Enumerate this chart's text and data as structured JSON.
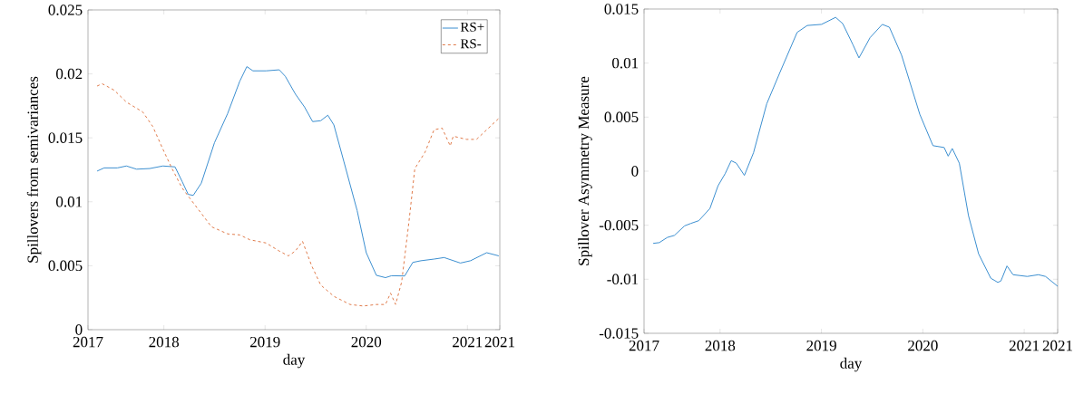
{
  "chart_data": [
    {
      "type": "line",
      "xlabel": "day",
      "ylabel": "Spillovers from semivariances",
      "xlim": [
        2017.25,
        2021.32
      ],
      "ylim": [
        0,
        0.025
      ],
      "xticks": [
        {
          "value": 2017.25,
          "label": "2017"
        },
        2018,
        2019,
        2020,
        2021,
        {
          "value": 2021.32,
          "label": "2021"
        }
      ],
      "yticks": [
        0,
        0.005,
        0.01,
        0.015,
        0.02,
        0.025
      ],
      "legend": "top right",
      "series": [
        {
          "name": "RS+",
          "color": "#3b8fd0",
          "line_style": "solid",
          "x": [
            2017.34,
            2017.41,
            2017.54,
            2017.63,
            2017.73,
            2017.86,
            2017.99,
            2018.11,
            2018.18,
            2018.24,
            2018.29,
            2018.37,
            2018.5,
            2018.63,
            2018.75,
            2018.82,
            2018.88,
            2019.01,
            2019.14,
            2019.2,
            2019.3,
            2019.39,
            2019.47,
            2019.55,
            2019.62,
            2019.68,
            2019.78,
            2019.91,
            2020.0,
            2020.1,
            2020.19,
            2020.25,
            2020.38,
            2020.46,
            2020.54,
            2020.67,
            2020.77,
            2020.93,
            2021.03,
            2021.19,
            2021.31
          ],
          "values": [
            0.0124,
            0.01265,
            0.01265,
            0.0128,
            0.01255,
            0.0126,
            0.0128,
            0.01273,
            0.01159,
            0.01058,
            0.0105,
            0.01146,
            0.01462,
            0.0169,
            0.01943,
            0.02057,
            0.02024,
            0.02024,
            0.02032,
            0.01981,
            0.01842,
            0.01741,
            0.01627,
            0.01634,
            0.01677,
            0.01601,
            0.01311,
            0.00931,
            0.00602,
            0.00425,
            0.00407,
            0.00422,
            0.0042,
            0.00526,
            0.00539,
            0.00552,
            0.00564,
            0.00521,
            0.00539,
            0.00602,
            0.00577
          ]
        },
        {
          "name": "RS-",
          "color": "#e07a4a",
          "line_style": "dashed",
          "x": [
            2017.34,
            2017.39,
            2017.51,
            2017.63,
            2017.79,
            2017.89,
            2017.99,
            2018.08,
            2018.18,
            2018.3,
            2018.47,
            2018.63,
            2018.75,
            2018.85,
            2019.01,
            2019.14,
            2019.23,
            2019.3,
            2019.37,
            2019.46,
            2019.55,
            2019.68,
            2019.84,
            2019.97,
            2020.1,
            2020.19,
            2020.24,
            2020.29,
            2020.35,
            2020.42,
            2020.48,
            2020.58,
            2020.67,
            2020.75,
            2020.83,
            2020.86,
            2020.99,
            2021.09,
            2021.19,
            2021.31
          ],
          "values": [
            0.01905,
            0.01923,
            0.01872,
            0.01779,
            0.01703,
            0.01589,
            0.01412,
            0.0126,
            0.01108,
            0.00982,
            0.00805,
            0.00749,
            0.00741,
            0.00703,
            0.00678,
            0.00615,
            0.00577,
            0.00615,
            0.00691,
            0.00501,
            0.00349,
            0.00261,
            0.00197,
            0.00185,
            0.00197,
            0.00197,
            0.00286,
            0.00197,
            0.00374,
            0.0083,
            0.0126,
            0.01386,
            0.01563,
            0.01576,
            0.01437,
            0.01513,
            0.01488,
            0.01488,
            0.01563,
            0.01652
          ]
        }
      ]
    },
    {
      "type": "line",
      "xlabel": "day",
      "ylabel": "Spillover Asymmetry Measure",
      "xlim": [
        2017.25,
        2021.33
      ],
      "ylim": [
        -0.015,
        0.015
      ],
      "xticks": [
        {
          "value": 2017.25,
          "label": "2017"
        },
        2018,
        2019,
        2020,
        2021,
        {
          "value": 2021.33,
          "label": "2021"
        }
      ],
      "yticks": [
        -0.015,
        -0.01,
        -0.005,
        0,
        0.005,
        0.01,
        0.015
      ],
      "series": [
        {
          "color": "#3b8fd0",
          "x": [
            2017.34,
            2017.4,
            2017.48,
            2017.55,
            2017.65,
            2017.71,
            2017.79,
            2017.9,
            2017.98,
            2018.05,
            2018.11,
            2018.16,
            2018.24,
            2018.33,
            2018.46,
            2018.59,
            2018.76,
            2018.86,
            2019.0,
            2019.14,
            2019.21,
            2019.31,
            2019.37,
            2019.48,
            2019.6,
            2019.67,
            2019.79,
            2019.97,
            2020.1,
            2020.21,
            2020.25,
            2020.29,
            2020.36,
            2020.45,
            2020.55,
            2020.67,
            2020.74,
            2020.77,
            2020.83,
            2020.89,
            2021.03,
            2021.14,
            2021.21,
            2021.33
          ],
          "values": [
            -0.00668,
            -0.00661,
            -0.00613,
            -0.00594,
            -0.00506,
            -0.00484,
            -0.00458,
            -0.00345,
            -0.00135,
            -0.00023,
            0.00097,
            0.00074,
            -0.00039,
            0.00171,
            0.00623,
            0.00913,
            0.01284,
            0.01348,
            0.01358,
            0.01423,
            0.01365,
            0.01171,
            0.01048,
            0.01236,
            0.01358,
            0.01332,
            0.01074,
            0.00526,
            0.00236,
            0.00219,
            0.00139,
            0.0021,
            0.00074,
            -0.0041,
            -0.00765,
            -0.0099,
            -0.01029,
            -0.01016,
            -0.00877,
            -0.00958,
            -0.00974,
            -0.00958,
            -0.00974,
            -0.01065
          ]
        }
      ]
    }
  ]
}
